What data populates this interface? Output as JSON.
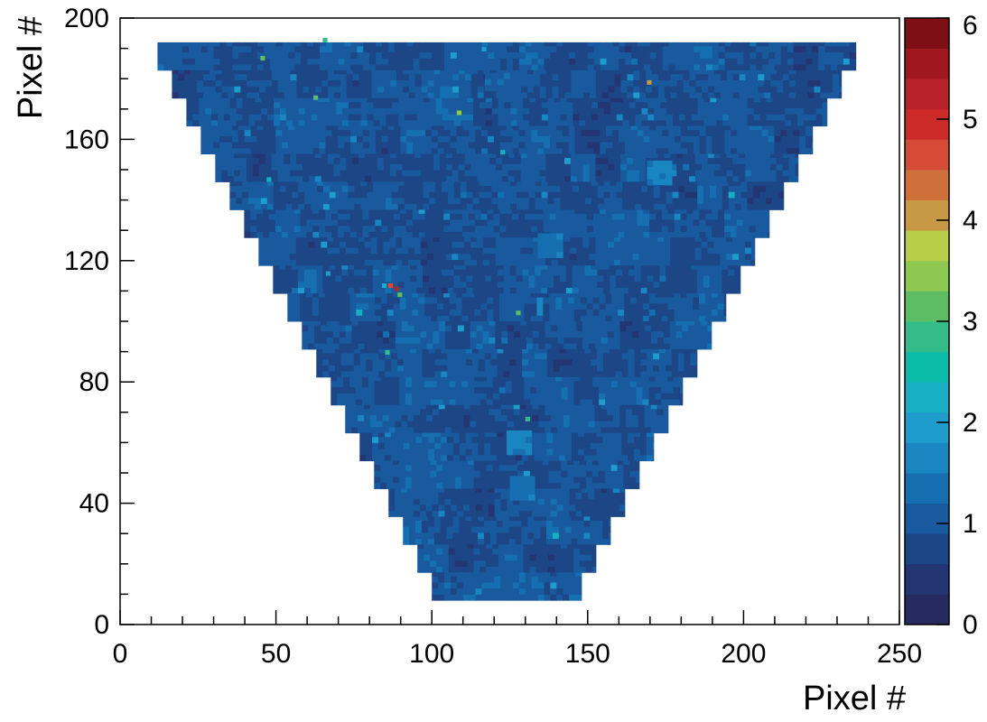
{
  "chart_data": {
    "type": "heatmap",
    "title": "",
    "xlabel": "Pixel #",
    "ylabel": "Pixel #",
    "xlim": [
      0,
      250
    ],
    "ylim": [
      0,
      200
    ],
    "x_ticks": [
      "0",
      "50",
      "100",
      "150",
      "200",
      "250"
    ],
    "y_ticks": [
      "0",
      "40",
      "80",
      "120",
      "160",
      "200"
    ],
    "colorbar": {
      "range": [
        0,
        6
      ],
      "ticks": [
        "0",
        "1",
        "2",
        "3",
        "4",
        "5",
        "6"
      ],
      "palette": [
        "#262a5e",
        "#233572",
        "#1c4686",
        "#185a9d",
        "#156fb0",
        "#1a86c1",
        "#1e9ccb",
        "#16afc3",
        "#0bbca8",
        "#33bb89",
        "#5cbd65",
        "#8ec850",
        "#b8cd48",
        "#c79845",
        "#cf6f3a",
        "#d54b35",
        "#cd2b2a",
        "#b9222b",
        "#a0171e",
        "#7e0f14"
      ]
    },
    "region": {
      "shape": "inverted-trapezoid",
      "top_y": 192,
      "bottom_y": 8,
      "top_x_range": [
        12,
        236
      ],
      "bottom_x_range": [
        100,
        148
      ],
      "step_rows": 20,
      "typical_value": 0.8
    },
    "hot_pixels": [
      {
        "x": 88,
        "y": 110,
        "value": 5.2
      },
      {
        "x": 86,
        "y": 111,
        "value": 4.6
      },
      {
        "x": 84,
        "y": 111,
        "value": 2.1
      },
      {
        "x": 89,
        "y": 108,
        "value": 3.0
      },
      {
        "x": 65,
        "y": 192,
        "value": 2.8
      },
      {
        "x": 45,
        "y": 186,
        "value": 3.2
      },
      {
        "x": 62,
        "y": 173,
        "value": 3.0
      },
      {
        "x": 108,
        "y": 168,
        "value": 3.4
      },
      {
        "x": 169,
        "y": 178,
        "value": 4.0
      },
      {
        "x": 122,
        "y": 155,
        "value": 2.2
      },
      {
        "x": 47,
        "y": 146,
        "value": 2.2
      },
      {
        "x": 127,
        "y": 102,
        "value": 3.3
      },
      {
        "x": 130,
        "y": 67,
        "value": 2.8
      },
      {
        "x": 85,
        "y": 89,
        "value": 2.8
      },
      {
        "x": 116,
        "y": 189,
        "value": 2.0
      },
      {
        "x": 66,
        "y": 115,
        "value": 2.0
      }
    ],
    "bright_patches": [
      {
        "x0": 169,
        "x1": 177,
        "y0": 145,
        "y1": 153,
        "value": 1.6
      },
      {
        "x0": 134,
        "x1": 141,
        "y0": 121,
        "y1": 129,
        "value": 1.4
      },
      {
        "x0": 124,
        "x1": 132,
        "y0": 56,
        "y1": 64,
        "value": 1.6
      },
      {
        "x0": 125,
        "x1": 132,
        "y0": 41,
        "y1": 48,
        "value": 1.4
      },
      {
        "x0": 117,
        "x1": 124,
        "y0": 176,
        "y1": 182,
        "value": 1.2
      }
    ]
  }
}
